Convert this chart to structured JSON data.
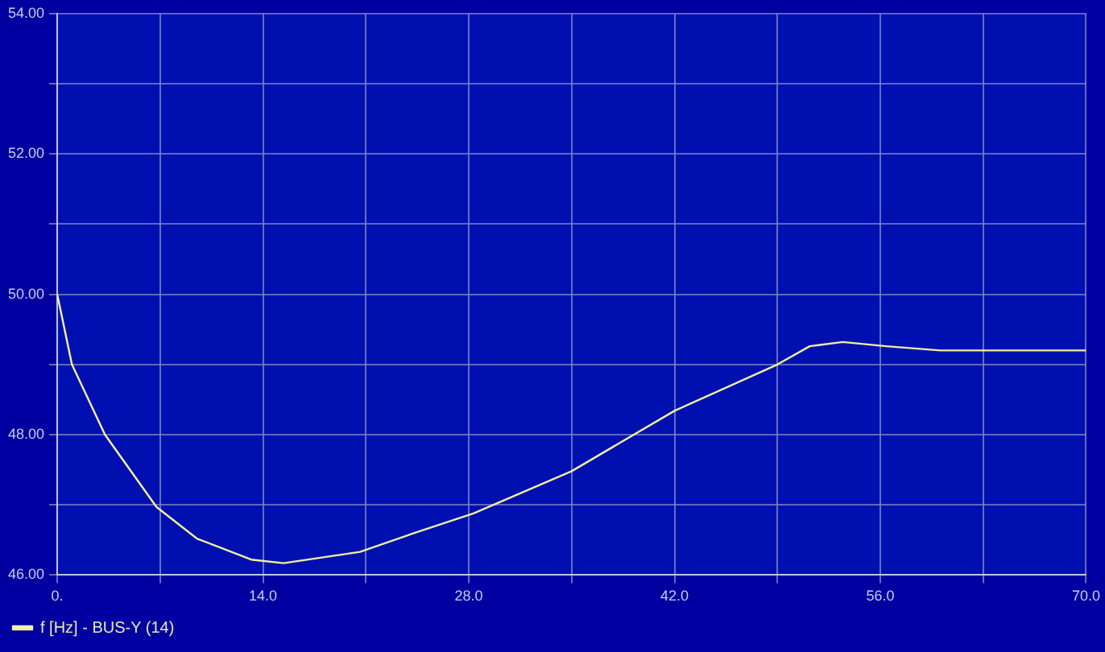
{
  "chart_data": {
    "type": "line",
    "x": [
      0,
      1,
      3.25,
      6.75,
      9.5,
      13.2,
      15.4,
      20.6,
      24.3,
      28.35,
      35,
      42,
      49,
      51.2,
      53.45,
      56.4,
      60.1,
      70
    ],
    "series": [
      {
        "name": "f [Hz] - BUS-Y (14)",
        "color": "#f0f0a0",
        "values": [
          50,
          49,
          48,
          46.97,
          46.52,
          46.22,
          46.17,
          46.33,
          46.6,
          46.88,
          47.48,
          48.34,
          49,
          49.26,
          49.32,
          49.26,
          49.2,
          49.2
        ]
      }
    ],
    "xlim": [
      0,
      70
    ],
    "xticks": [
      {
        "value": 0,
        "label": "0."
      },
      {
        "value": 7,
        "label": null
      },
      {
        "value": 14,
        "label": "14.0"
      },
      {
        "value": 21,
        "label": null
      },
      {
        "value": 28,
        "label": "28.0"
      },
      {
        "value": 35,
        "label": null
      },
      {
        "value": 42,
        "label": "42.0"
      },
      {
        "value": 49,
        "label": null
      },
      {
        "value": 56,
        "label": "56.0"
      },
      {
        "value": 63,
        "label": null
      },
      {
        "value": 70,
        "label": "70.0"
      }
    ],
    "ylim": [
      46,
      54
    ],
    "yticks": [
      {
        "value": 46,
        "label": "46.00"
      },
      {
        "value": 47,
        "label": null
      },
      {
        "value": 48,
        "label": "48.00"
      },
      {
        "value": 49,
        "label": null
      },
      {
        "value": 50,
        "label": "50.00"
      },
      {
        "value": 51,
        "label": null
      },
      {
        "value": 52,
        "label": "52.00"
      },
      {
        "value": 53,
        "label": null
      },
      {
        "value": 54,
        "label": "54.00"
      }
    ],
    "grid": true,
    "legend": "bottom left",
    "marker": "none",
    "line_style": "solid"
  }
}
